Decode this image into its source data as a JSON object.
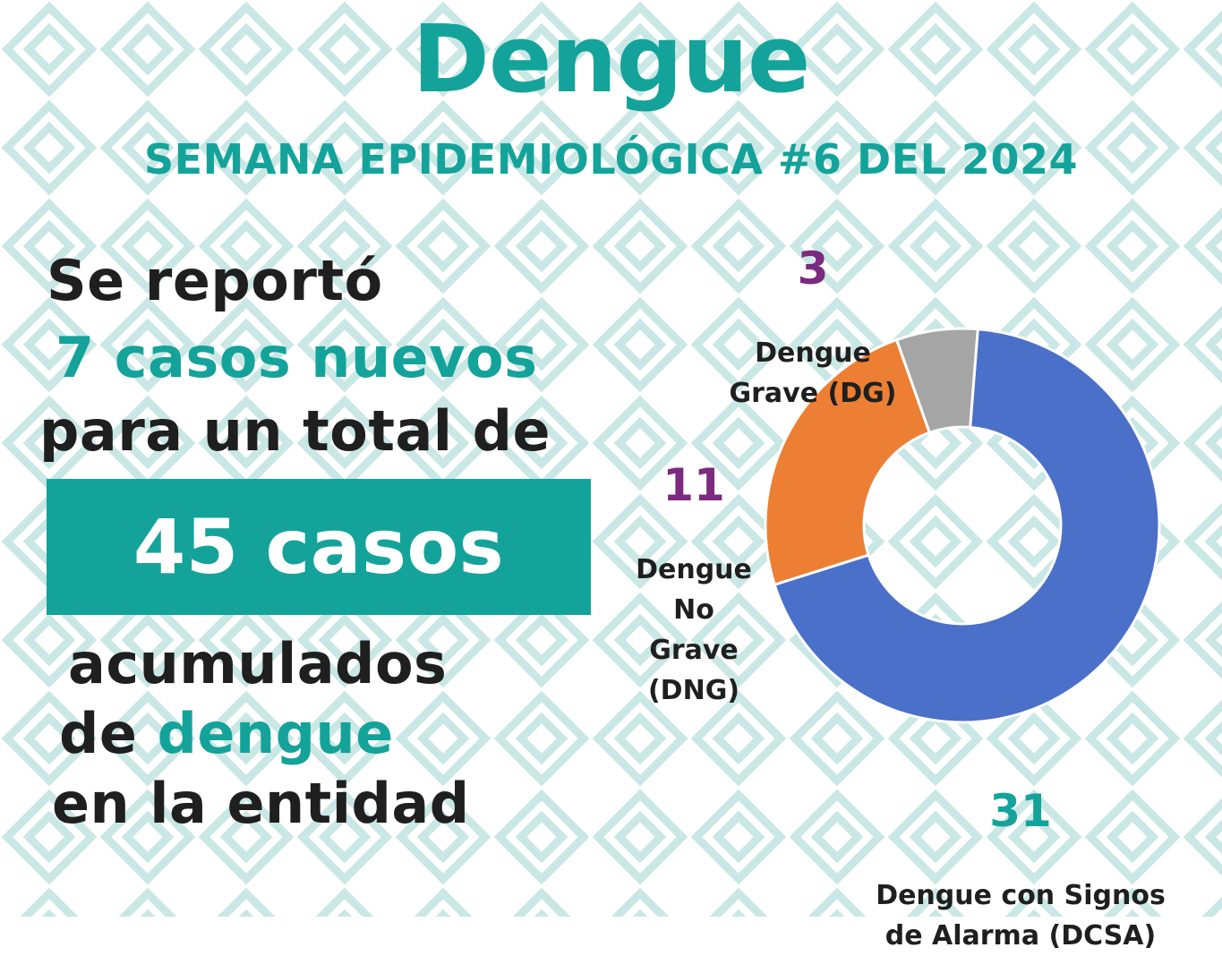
{
  "title": "Dengue",
  "subtitle": "SEMANA EPIDEMIOLÓGICA #6 DEL 2024",
  "message": {
    "line1": "Se reportó",
    "line2": "7 casos nuevos",
    "line3": "para un total de",
    "highlight": "45 casos",
    "line4": "acumulados",
    "line5_prefix": "de ",
    "line5_highlight": "dengue",
    "line6": "en la entidad"
  },
  "colors": {
    "teal": "#14a39a",
    "dark_text": "#1f1f1f",
    "value_purple": "#7b2a7f",
    "value_teal": "#14a39a",
    "pattern": "#c9e7e4"
  },
  "chart_data": {
    "type": "pie",
    "donut": true,
    "title": "",
    "slices": [
      {
        "label": "Dengue con Signos de Alarma (DCSA)",
        "value": 31,
        "color": "#4a70c9",
        "value_color": "#14a39a"
      },
      {
        "label": "Dengue No Grave (DNG)",
        "value": 11,
        "color": "#ec7f33",
        "value_color": "#7b2a7f"
      },
      {
        "label": "Dengue Grave (DG)",
        "value": 3,
        "color": "#a5a5a5",
        "value_color": "#7b2a7f"
      }
    ],
    "slice_labels": {
      "dg": "Dengue\nGrave (DG)",
      "dng": "Dengue\nNo\nGrave\n(DNG)",
      "dcsa": "Dengue con Signos\nde Alarma (DCSA)"
    },
    "legend": "none"
  }
}
